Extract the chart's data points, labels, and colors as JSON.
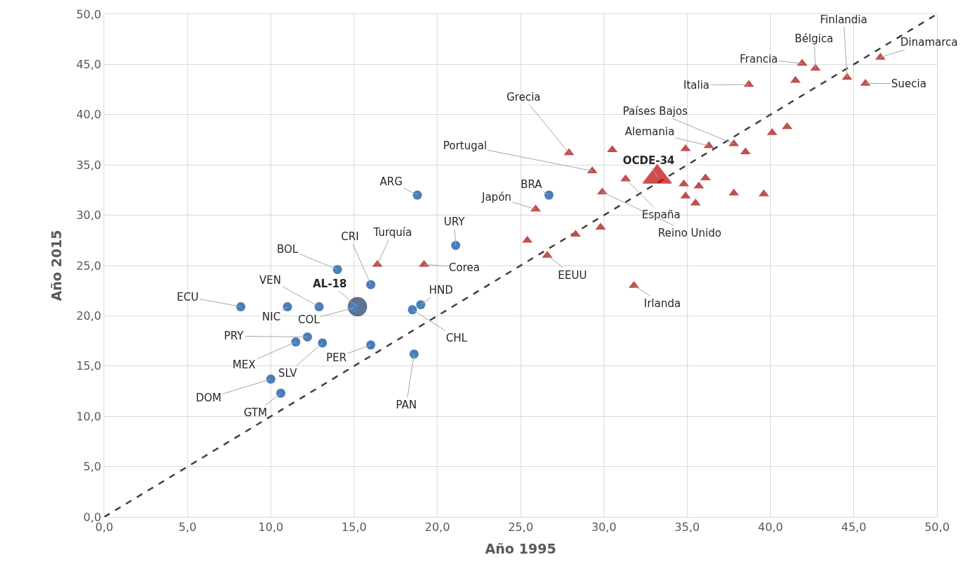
{
  "chart_data": {
    "type": "scatter",
    "xlabel": "Año 1995",
    "ylabel": "Año 2015",
    "xlim": [
      0,
      50
    ],
    "ylim": [
      0,
      50
    ],
    "xticks": [
      {
        "value": 0,
        "label": "0,0"
      },
      {
        "value": 5,
        "label": "5,0"
      },
      {
        "value": 10,
        "label": "10,0"
      },
      {
        "value": 15,
        "label": "15,0"
      },
      {
        "value": 20,
        "label": "20,0"
      },
      {
        "value": 25,
        "label": "25,0"
      },
      {
        "value": 30,
        "label": "30,0"
      },
      {
        "value": 35,
        "label": "35,0"
      },
      {
        "value": 40,
        "label": "40,0"
      },
      {
        "value": 45,
        "label": "45,0"
      },
      {
        "value": 50,
        "label": "50,0"
      }
    ],
    "yticks": [
      {
        "value": 0,
        "label": "0,0"
      },
      {
        "value": 5,
        "label": "5,0"
      },
      {
        "value": 10,
        "label": "10,0"
      },
      {
        "value": 15,
        "label": "15,0"
      },
      {
        "value": 20,
        "label": "20,0"
      },
      {
        "value": 25,
        "label": "25,0"
      },
      {
        "value": 30,
        "label": "30,0"
      },
      {
        "value": 35,
        "label": "35,0"
      },
      {
        "value": 40,
        "label": "40,0"
      },
      {
        "value": 45,
        "label": "45,0"
      },
      {
        "value": 50,
        "label": "50,0"
      }
    ],
    "grid": true,
    "series": [
      {
        "type": "line",
        "color": "#404040",
        "line_style": "dashed",
        "marker": "none",
        "x": [
          0,
          50
        ],
        "values": [
          0,
          50
        ]
      },
      {
        "type": "bubble",
        "color": "#1f3864",
        "marker": "circle",
        "x": [
          15.2
        ],
        "values": [
          20.9
        ],
        "sizes": [
          1
        ]
      },
      {
        "type": "bubble",
        "color": "#c00000",
        "marker": "triangle",
        "x": [
          33.2
        ],
        "values": [
          33.8
        ],
        "sizes": [
          1
        ]
      },
      {
        "type": "scatter",
        "color": "#4a7ebb",
        "marker": "circle",
        "x": [
          18.8,
          26.7,
          21.1,
          14.0,
          16.0,
          8.2,
          11.0,
          12.9,
          15.0,
          19.0,
          18.5,
          12.2,
          11.5,
          13.1,
          16.0,
          18.6,
          10.0,
          10.6
        ],
        "values": [
          32.0,
          32.0,
          27.0,
          24.6,
          23.1,
          20.9,
          20.9,
          20.9,
          20.8,
          21.1,
          20.6,
          17.9,
          17.4,
          17.3,
          17.1,
          16.2,
          13.7,
          12.3
        ]
      },
      {
        "type": "scatter",
        "color": "#c0504d",
        "marker": "triangle",
        "x": [
          16.4,
          19.2,
          25.9,
          27.9,
          29.3,
          30.5,
          31.3,
          29.9,
          25.4,
          26.6,
          28.3,
          29.8,
          31.8,
          41.9,
          42.7,
          41.5,
          38.7,
          44.6,
          46.6,
          45.7,
          41.0,
          40.1,
          37.8,
          38.5,
          36.3,
          34.9,
          34.8,
          35.7,
          36.1,
          34.9,
          35.5,
          37.8,
          39.6
        ],
        "values": [
          25.1,
          25.1,
          30.6,
          36.2,
          34.4,
          36.5,
          33.6,
          32.3,
          27.5,
          26.0,
          28.1,
          28.8,
          23.0,
          45.1,
          44.6,
          43.4,
          43.0,
          43.7,
          45.7,
          43.1,
          38.8,
          38.2,
          37.1,
          36.3,
          36.9,
          36.6,
          33.1,
          32.9,
          33.7,
          31.9,
          31.2,
          32.2,
          32.1
        ]
      }
    ],
    "annotations": [
      {
        "text": "ARG",
        "x": 18.8,
        "y": 32.0
      },
      {
        "text": "BRA",
        "x": 26.7,
        "y": 32.0
      },
      {
        "text": "URY",
        "x": 21.1,
        "y": 27.0
      },
      {
        "text": "BOL",
        "x": 14.0,
        "y": 24.6
      },
      {
        "text": "CRI",
        "x": 16.0,
        "y": 23.1
      },
      {
        "text": "ECU",
        "x": 8.2,
        "y": 20.9
      },
      {
        "text": "NIC",
        "x": 11.0,
        "y": 20.9
      },
      {
        "text": "VEN",
        "x": 12.9,
        "y": 20.9
      },
      {
        "text": "AL-18",
        "x": 15.2,
        "y": 20.9
      },
      {
        "text": "COL",
        "x": 15.0,
        "y": 20.8
      },
      {
        "text": "HND",
        "x": 19.0,
        "y": 21.1
      },
      {
        "text": "CHL",
        "x": 18.5,
        "y": 20.6
      },
      {
        "text": "PRY",
        "x": 12.2,
        "y": 17.9
      },
      {
        "text": "MEX",
        "x": 11.5,
        "y": 17.4
      },
      {
        "text": "SLV",
        "x": 13.1,
        "y": 17.3
      },
      {
        "text": "PER",
        "x": 16.0,
        "y": 17.1
      },
      {
        "text": "PAN",
        "x": 18.6,
        "y": 16.2
      },
      {
        "text": "DOM",
        "x": 10.0,
        "y": 13.7
      },
      {
        "text": "GTM",
        "x": 10.6,
        "y": 12.3
      },
      {
        "text": "Turquía",
        "x": 16.4,
        "y": 25.1
      },
      {
        "text": "Corea",
        "x": 19.2,
        "y": 25.1
      },
      {
        "text": "Japón",
        "x": 25.9,
        "y": 30.6
      },
      {
        "text": "Grecia",
        "x": 27.9,
        "y": 36.2
      },
      {
        "text": "Portugal",
        "x": 29.3,
        "y": 34.4
      },
      {
        "text": "OCDE-34",
        "x": 33.2,
        "y": 33.8
      },
      {
        "text": "España",
        "x": 31.3,
        "y": 33.6
      },
      {
        "text": "Reino Unido",
        "x": 29.9,
        "y": 32.3
      },
      {
        "text": "EEUU",
        "x": 26.6,
        "y": 26.0
      },
      {
        "text": "Irlanda",
        "x": 31.8,
        "y": 23.0
      },
      {
        "text": "Países Bajos",
        "x": 37.8,
        "y": 37.1
      },
      {
        "text": "Alemania",
        "x": 36.3,
        "y": 36.9
      },
      {
        "text": "Italia",
        "x": 38.7,
        "y": 43.0
      },
      {
        "text": "Francia",
        "x": 41.9,
        "y": 45.1
      },
      {
        "text": "Bélgica",
        "x": 42.7,
        "y": 44.6
      },
      {
        "text": "Finlandia",
        "x": 44.6,
        "y": 43.7
      },
      {
        "text": "Dinamarca",
        "x": 46.6,
        "y": 45.7
      },
      {
        "text": "Suecia",
        "x": 45.7,
        "y": 43.1
      }
    ]
  }
}
